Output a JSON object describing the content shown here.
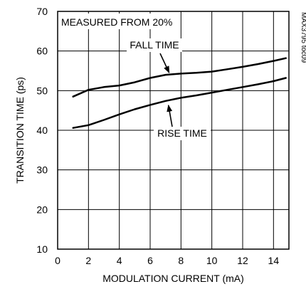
{
  "chart_data": {
    "type": "line",
    "title": "",
    "xlabel": "MODULATION CURRENT (mA)",
    "ylabel": "TRANSITION TIME (ps)",
    "xlim": [
      0,
      15
    ],
    "ylim": [
      10,
      70
    ],
    "x_ticks": [
      0,
      2,
      4,
      6,
      8,
      10,
      12,
      14
    ],
    "y_ticks": [
      10,
      20,
      30,
      40,
      50,
      60,
      70
    ],
    "grid": true,
    "legend": "none",
    "series": [
      {
        "name": "FALL TIME",
        "x": [
          1,
          2,
          3,
          4,
          5,
          6,
          7,
          8,
          9,
          10,
          11,
          12,
          13,
          14,
          14.8
        ],
        "y": [
          48.5,
          50.2,
          50.9,
          51.3,
          52.1,
          53.2,
          54.0,
          54.3,
          54.5,
          54.8,
          55.4,
          56.0,
          56.7,
          57.5,
          58.2
        ],
        "color": "#000000"
      },
      {
        "name": "RISE TIME",
        "x": [
          1,
          2,
          3,
          4,
          5,
          6,
          7,
          8,
          9,
          10,
          11,
          12,
          13,
          14,
          14.8
        ],
        "y": [
          40.6,
          41.3,
          42.6,
          44.0,
          45.3,
          46.4,
          47.4,
          48.2,
          48.8,
          49.5,
          50.2,
          50.9,
          51.6,
          52.4,
          53.2
        ],
        "color": "#000000"
      }
    ],
    "annotations": [
      {
        "id": "measured",
        "text": "MEASURED FROM 20%"
      },
      {
        "id": "fall",
        "text": "FALL TIME",
        "arrow_to": [
          7,
          54.0
        ]
      },
      {
        "id": "rise",
        "text": "RISE TIME",
        "arrow_to": [
          7,
          47.4
        ]
      }
    ],
    "side_code": "MAX3795 toc09"
  }
}
